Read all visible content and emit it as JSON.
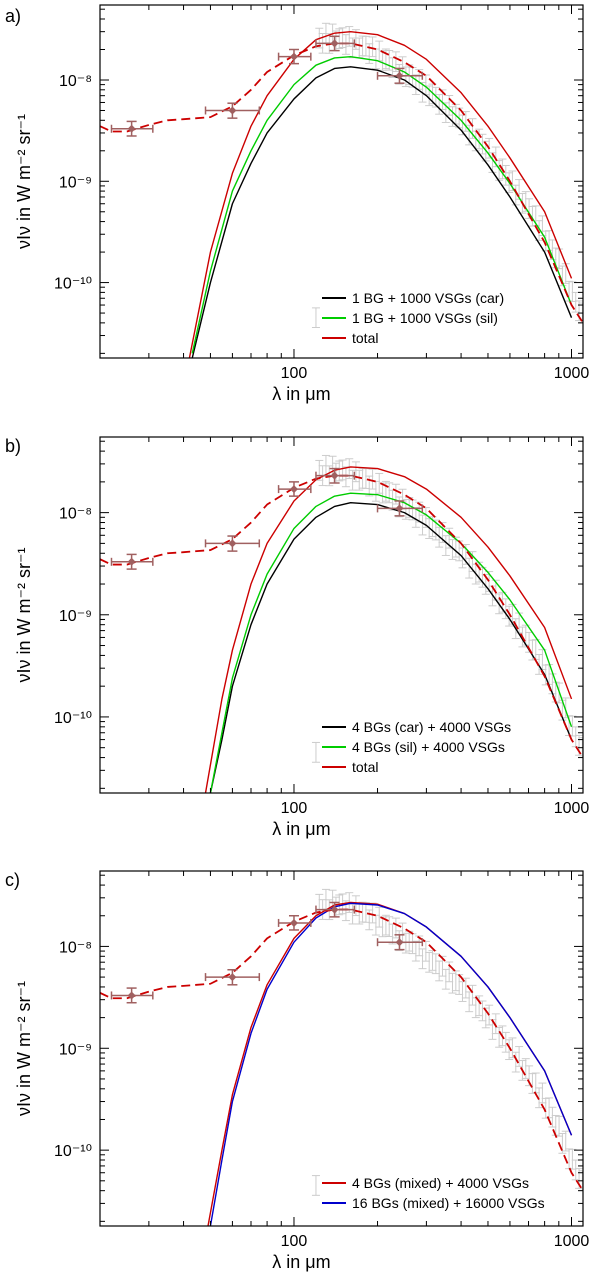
{
  "chart_data": [
    {
      "type": "line",
      "panel_label": "a)",
      "xlabel": "λ in μm",
      "ylabel": "νIν  in W m⁻² sr⁻¹",
      "xscale": "log",
      "yscale": "log",
      "xlim": [
        20,
        1100
      ],
      "ylim": [
        1.8e-11,
        5.5e-08
      ],
      "x_tick_labels": [
        "100",
        "1000"
      ],
      "y_tick_labels": [
        "10⁻⁸",
        "10⁻⁹",
        "10⁻¹⁰"
      ],
      "legend_position": "bottom-right",
      "series": [
        {
          "name": "1 BG + 1000 VSGs (car)",
          "color": "#000000",
          "style": "solid",
          "show_in_legend": true,
          "x": [
            43,
            50,
            60,
            70,
            80,
            100,
            120,
            140,
            160,
            200,
            250,
            300,
            400,
            500,
            600,
            800,
            1000
          ],
          "y": [
            1.8e-11,
            1e-10,
            6e-10,
            1.5e-09,
            3e-09,
            6.5e-09,
            1.05e-08,
            1.3e-08,
            1.35e-08,
            1.25e-08,
            1e-08,
            7e-09,
            3.2e-09,
            1.45e-09,
            7e-10,
            2e-10,
            4.5e-11
          ]
        },
        {
          "name": "1 BG + 1000 VSGs (sil)",
          "color": "#00cc00",
          "style": "solid",
          "show_in_legend": true,
          "x": [
            43,
            50,
            60,
            70,
            80,
            100,
            120,
            140,
            160,
            200,
            250,
            300,
            400,
            500,
            600,
            800,
            1000
          ],
          "y": [
            2e-11,
            1.3e-10,
            8e-10,
            2e-09,
            4e-09,
            9e-09,
            1.4e-08,
            1.65e-08,
            1.7e-08,
            1.55e-08,
            1.2e-08,
            8.5e-09,
            4e-09,
            1.9e-09,
            9.5e-10,
            2.8e-10,
            6e-11
          ]
        },
        {
          "name": "total",
          "color": "#cc0000",
          "style": "solid",
          "show_in_legend": true,
          "x": [
            42,
            50,
            60,
            70,
            80,
            100,
            120,
            140,
            160,
            200,
            250,
            300,
            400,
            500,
            600,
            800,
            1000
          ],
          "y": [
            1.8e-11,
            2e-10,
            1.2e-09,
            3.5e-09,
            7e-09,
            1.6e-08,
            2.5e-08,
            2.9e-08,
            3e-08,
            2.8e-08,
            2.2e-08,
            1.6e-08,
            7.5e-09,
            3.5e-09,
            1.7e-09,
            5e-10,
            1.1e-10
          ]
        },
        {
          "name": "observed model (dashed)",
          "color": "#cc0000",
          "style": "dashed",
          "show_in_legend": false,
          "x": [
            20,
            22,
            25,
            30,
            35,
            40,
            50,
            60,
            70,
            80,
            100,
            120,
            140,
            160,
            200,
            250,
            300,
            400,
            500,
            600,
            800,
            1000,
            1100
          ],
          "y": [
            3.5e-09,
            3.1e-09,
            3.1e-09,
            3.6e-09,
            4e-09,
            4.1e-09,
            4.3e-09,
            5.5e-09,
            8e-09,
            1.2e-08,
            1.75e-08,
            2.15e-08,
            2.3e-08,
            2.3e-08,
            2e-08,
            1.5e-08,
            1.1e-08,
            5e-09,
            2.2e-09,
            1e-09,
            2.5e-10,
            6e-11,
            4e-11
          ]
        }
      ],
      "observations": {
        "color": "#a06060",
        "x": [
          26,
          60,
          100,
          140,
          240
        ],
        "y": [
          3.3e-09,
          5e-09,
          1.7e-08,
          2.3e-08,
          1.1e-08
        ],
        "x_err_low": [
          22,
          48,
          88,
          120,
          200
        ],
        "x_err_high": [
          31,
          75,
          115,
          165,
          290
        ],
        "y_err_low": [
          2.8e-09,
          4.2e-09,
          1.45e-08,
          1.95e-08,
          9.3e-09
        ],
        "y_err_high": [
          3.9e-09,
          5.9e-09,
          2e-08,
          2.7e-08,
          1.3e-08
        ]
      },
      "gray_data": {
        "color": "#cccccc",
        "x_min": 120,
        "x_max": 1100,
        "rel_err": 0.25,
        "x": [
          120,
          130,
          140,
          150,
          160,
          180,
          200,
          230,
          260,
          300,
          350,
          400,
          500,
          600,
          700,
          800,
          900,
          1000,
          1100
        ],
        "y": [
          2.4e-08,
          2.6e-08,
          2.6e-08,
          2.5e-08,
          2.4e-08,
          2.1e-08,
          1.8e-08,
          1.4e-08,
          1.1e-08,
          8e-09,
          5.5e-09,
          4e-09,
          2e-09,
          1e-09,
          5.5e-10,
          3e-10,
          1.6e-10,
          8e-11,
          4.5e-11
        ]
      }
    },
    {
      "type": "line",
      "panel_label": "b)",
      "xlabel": "λ in μm",
      "ylabel": "νIν  in W m⁻² sr⁻¹",
      "xscale": "log",
      "yscale": "log",
      "xlim": [
        20,
        1100
      ],
      "ylim": [
        1.8e-11,
        5.5e-08
      ],
      "x_tick_labels": [
        "100",
        "1000"
      ],
      "y_tick_labels": [
        "10⁻⁸",
        "10⁻⁹",
        "10⁻¹⁰"
      ],
      "legend_position": "bottom-right",
      "series": [
        {
          "name": "4 BGs (car) + 4000 VSGs",
          "color": "#000000",
          "style": "solid",
          "show_in_legend": true,
          "x": [
            50,
            55,
            60,
            70,
            80,
            100,
            120,
            140,
            160,
            200,
            250,
            300,
            400,
            500,
            600,
            800,
            1000
          ],
          "y": [
            1.8e-11,
            6e-11,
            2e-10,
            8e-10,
            2e-09,
            5.5e-09,
            9e-09,
            1.15e-08,
            1.25e-08,
            1.2e-08,
            1e-08,
            7.5e-09,
            3.8e-09,
            1.8e-09,
            9e-10,
            2.6e-10,
            6e-11
          ]
        },
        {
          "name": "4 BGs (sil) + 4000 VSGs",
          "color": "#00cc00",
          "style": "solid",
          "show_in_legend": true,
          "x": [
            50,
            55,
            60,
            70,
            80,
            100,
            120,
            140,
            160,
            200,
            250,
            300,
            400,
            500,
            600,
            800,
            1000
          ],
          "y": [
            1.8e-11,
            7e-11,
            2.4e-10,
            1e-09,
            2.5e-09,
            7e-09,
            1.15e-08,
            1.45e-08,
            1.55e-08,
            1.5e-08,
            1.25e-08,
            9.5e-09,
            5e-09,
            2.6e-09,
            1.4e-09,
            4.5e-10,
            8e-11
          ]
        },
        {
          "name": "total",
          "color": "#cc0000",
          "style": "solid",
          "show_in_legend": true,
          "x": [
            48,
            55,
            60,
            70,
            80,
            100,
            120,
            140,
            160,
            200,
            250,
            300,
            400,
            500,
            600,
            800,
            1000
          ],
          "y": [
            1.8e-11,
            1.5e-10,
            4.5e-10,
            2e-09,
            5e-09,
            1.3e-08,
            2.1e-08,
            2.6e-08,
            2.8e-08,
            2.7e-08,
            2.25e-08,
            1.7e-08,
            9e-09,
            4.6e-09,
            2.4e-09,
            7.5e-10,
            1.5e-10
          ]
        },
        {
          "name": "observed model (dashed)",
          "color": "#cc0000",
          "style": "dashed",
          "show_in_legend": false,
          "x": [
            20,
            22,
            25,
            30,
            35,
            40,
            50,
            60,
            70,
            80,
            100,
            120,
            140,
            160,
            200,
            250,
            300,
            400,
            500,
            600,
            800,
            1000,
            1100
          ],
          "y": [
            3.5e-09,
            3.1e-09,
            3.1e-09,
            3.6e-09,
            4e-09,
            4.1e-09,
            4.3e-09,
            5.5e-09,
            8e-09,
            1.2e-08,
            1.75e-08,
            2.15e-08,
            2.3e-08,
            2.3e-08,
            2e-08,
            1.5e-08,
            1.1e-08,
            5e-09,
            2.2e-09,
            1e-09,
            2.5e-10,
            6e-11,
            4e-11
          ]
        }
      ],
      "observations": {
        "color": "#a06060",
        "x": [
          26,
          60,
          100,
          140,
          240
        ],
        "y": [
          3.3e-09,
          5e-09,
          1.7e-08,
          2.3e-08,
          1.1e-08
        ],
        "x_err_low": [
          22,
          48,
          88,
          120,
          200
        ],
        "x_err_high": [
          31,
          75,
          115,
          165,
          290
        ],
        "y_err_low": [
          2.8e-09,
          4.2e-09,
          1.45e-08,
          1.95e-08,
          9.3e-09
        ],
        "y_err_high": [
          3.9e-09,
          5.9e-09,
          2e-08,
          2.7e-08,
          1.3e-08
        ]
      },
      "gray_data": {
        "color": "#cccccc",
        "x_min": 120,
        "x_max": 1100,
        "rel_err": 0.25,
        "x": [
          120,
          130,
          140,
          150,
          160,
          180,
          200,
          230,
          260,
          300,
          350,
          400,
          500,
          600,
          700,
          800,
          900,
          1000,
          1100
        ],
        "y": [
          2.4e-08,
          2.6e-08,
          2.6e-08,
          2.5e-08,
          2.4e-08,
          2.1e-08,
          1.8e-08,
          1.4e-08,
          1.1e-08,
          8e-09,
          5.5e-09,
          4e-09,
          2e-09,
          1e-09,
          5.5e-10,
          3e-10,
          1.6e-10,
          8e-11,
          4.5e-11
        ]
      }
    },
    {
      "type": "line",
      "panel_label": "c)",
      "xlabel": "λ in μm",
      "ylabel": "νIν  in W m⁻² sr⁻¹",
      "xscale": "log",
      "yscale": "log",
      "xlim": [
        20,
        1100
      ],
      "ylim": [
        1.8e-11,
        5.5e-08
      ],
      "x_tick_labels": [
        "100",
        "1000"
      ],
      "y_tick_labels": [
        "10⁻⁸",
        "10⁻⁹",
        "10⁻¹⁰"
      ],
      "legend_position": "bottom-right",
      "series": [
        {
          "name": "4 BGs (mixed) + 4000 VSGs",
          "color": "#cc0000",
          "style": "solid",
          "show_in_legend": true,
          "x": [
            49,
            55,
            60,
            70,
            80,
            100,
            120,
            140,
            160,
            200,
            250,
            300,
            400,
            500,
            600,
            800,
            1000
          ],
          "y": [
            1.8e-11,
            1e-10,
            3.5e-10,
            1.6e-09,
            4.2e-09,
            1.2e-08,
            2e-08,
            2.55e-08,
            2.7e-08,
            2.6e-08,
            2.1e-08,
            1.55e-08,
            8e-09,
            4e-09,
            2e-09,
            6e-10,
            1.4e-10
          ]
        },
        {
          "name": "16 BGs (mixed) + 16000 VSGs",
          "color": "#0000cc",
          "style": "solid",
          "show_in_legend": true,
          "x": [
            50,
            55,
            60,
            70,
            80,
            100,
            120,
            140,
            160,
            200,
            250,
            300,
            400,
            500,
            600,
            800,
            1000
          ],
          "y": [
            1.8e-11,
            8e-11,
            3e-10,
            1.4e-09,
            3.8e-09,
            1.1e-08,
            1.9e-08,
            2.45e-08,
            2.65e-08,
            2.55e-08,
            2.1e-08,
            1.55e-08,
            8e-09,
            4e-09,
            2e-09,
            6e-10,
            1.4e-10
          ]
        },
        {
          "name": "observed model (dashed)",
          "color": "#cc0000",
          "style": "dashed",
          "show_in_legend": false,
          "x": [
            20,
            22,
            25,
            30,
            35,
            40,
            50,
            60,
            70,
            80,
            100,
            120,
            140,
            160,
            200,
            250,
            300,
            400,
            500,
            600,
            800,
            1000,
            1100
          ],
          "y": [
            3.5e-09,
            3.1e-09,
            3.1e-09,
            3.6e-09,
            4e-09,
            4.1e-09,
            4.3e-09,
            5.5e-09,
            8e-09,
            1.2e-08,
            1.75e-08,
            2.15e-08,
            2.3e-08,
            2.3e-08,
            2e-08,
            1.5e-08,
            1.1e-08,
            5e-09,
            2.2e-09,
            1e-09,
            2.5e-10,
            6e-11,
            4e-11
          ]
        }
      ],
      "observations": {
        "color": "#a06060",
        "x": [
          26,
          60,
          100,
          140,
          240
        ],
        "y": [
          3.3e-09,
          5e-09,
          1.7e-08,
          2.3e-08,
          1.1e-08
        ],
        "x_err_low": [
          22,
          48,
          88,
          120,
          200
        ],
        "x_err_high": [
          31,
          75,
          115,
          165,
          290
        ],
        "y_err_low": [
          2.8e-09,
          4.2e-09,
          1.45e-08,
          1.95e-08,
          9.3e-09
        ],
        "y_err_high": [
          3.9e-09,
          5.9e-09,
          2e-08,
          2.7e-08,
          1.3e-08
        ]
      },
      "gray_data": {
        "color": "#cccccc",
        "x_min": 120,
        "x_max": 1100,
        "rel_err": 0.25,
        "x": [
          120,
          130,
          140,
          150,
          160,
          180,
          200,
          230,
          260,
          300,
          350,
          400,
          500,
          600,
          700,
          800,
          900,
          1000,
          1100
        ],
        "y": [
          2.4e-08,
          2.6e-08,
          2.6e-08,
          2.5e-08,
          2.4e-08,
          2.1e-08,
          1.8e-08,
          1.4e-08,
          1.1e-08,
          8e-09,
          5.5e-09,
          4e-09,
          2e-09,
          1e-09,
          5.5e-10,
          3e-10,
          1.6e-10,
          8e-11,
          4.5e-11
        ]
      }
    }
  ]
}
